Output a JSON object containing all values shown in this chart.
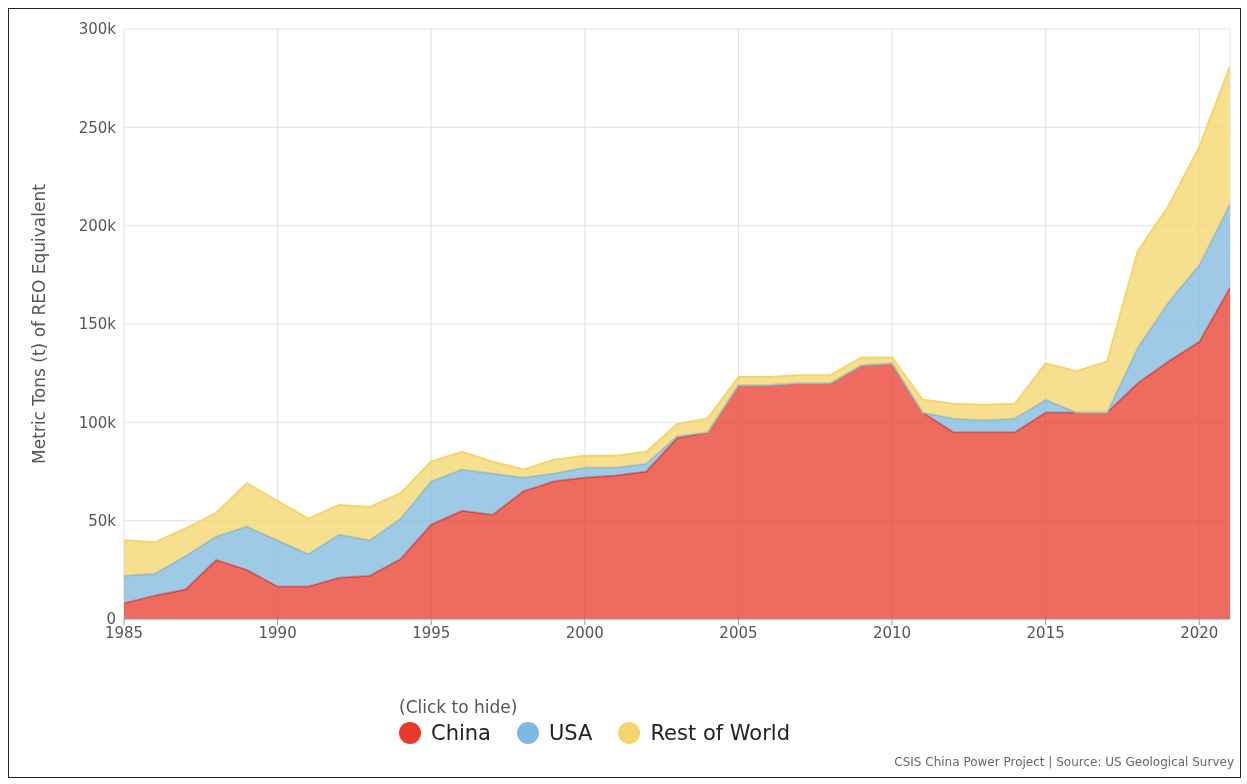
{
  "chart_data": {
    "type": "area",
    "stacked": true,
    "ylabel": "Metric Tons (t) of REO Equivalent",
    "legend_title": "(Click to hide)",
    "legend": "bottom",
    "grid": true,
    "x": [
      1985,
      1986,
      1987,
      1988,
      1989,
      1990,
      1991,
      1992,
      1993,
      1994,
      1995,
      1996,
      1997,
      1998,
      1999,
      2000,
      2001,
      2002,
      2003,
      2004,
      2005,
      2006,
      2007,
      2008,
      2009,
      2010,
      2011,
      2012,
      2013,
      2014,
      2015,
      2016,
      2017,
      2018,
      2019,
      2020,
      2021
    ],
    "xlim": [
      1985,
      2021
    ],
    "xticks": [
      1985,
      1990,
      1995,
      2000,
      2005,
      2010,
      2015,
      2020
    ],
    "ylim": [
      0,
      300000
    ],
    "yticks": [
      {
        "value": 0,
        "label": "0"
      },
      {
        "value": 50000,
        "label": "50k"
      },
      {
        "value": 100000,
        "label": "100k"
      },
      {
        "value": 150000,
        "label": "150k"
      },
      {
        "value": 200000,
        "label": "200k"
      },
      {
        "value": 250000,
        "label": "250k"
      },
      {
        "value": 300000,
        "label": "300k"
      }
    ],
    "series": [
      {
        "name": "China",
        "color": "#e8392b",
        "values": [
          8000,
          12000,
          15000,
          30000,
          25000,
          16500,
          16500,
          21000,
          22000,
          30500,
          48000,
          55000,
          53000,
          65000,
          70000,
          72000,
          73000,
          75000,
          92000,
          95000,
          119000,
          119000,
          120000,
          120000,
          129000,
          130000,
          105000,
          95000,
          95000,
          95000,
          105000,
          105000,
          105000,
          120000,
          131000,
          141000,
          168600
        ]
      },
      {
        "name": "USA",
        "color": "#7fb8de",
        "values": [
          14000,
          11000,
          17000,
          12000,
          22000,
          23500,
          16500,
          22000,
          18000,
          20500,
          22000,
          21000,
          21000,
          7000,
          4000,
          5000,
          4000,
          4000,
          1000,
          0,
          0,
          0,
          0,
          0,
          0,
          0,
          0,
          7000,
          6000,
          7000,
          6500,
          0,
          0,
          18000,
          30000,
          39000,
          42400
        ]
      },
      {
        "name": "Rest of World",
        "color": "#f4d46b",
        "values": [
          18000,
          16000,
          14000,
          12000,
          22000,
          20000,
          18000,
          15000,
          17000,
          13000,
          10000,
          9000,
          6000,
          4000,
          7000,
          6000,
          6000,
          6000,
          6000,
          7000,
          4000,
          4000,
          4000,
          4000,
          4000,
          3000,
          6500,
          7500,
          8000,
          7500,
          18500,
          21000,
          26000,
          49000,
          49000,
          60000,
          70000
        ]
      }
    ],
    "annotations": [
      "CSIS China Power Project | Source: US Geological Survey"
    ]
  }
}
